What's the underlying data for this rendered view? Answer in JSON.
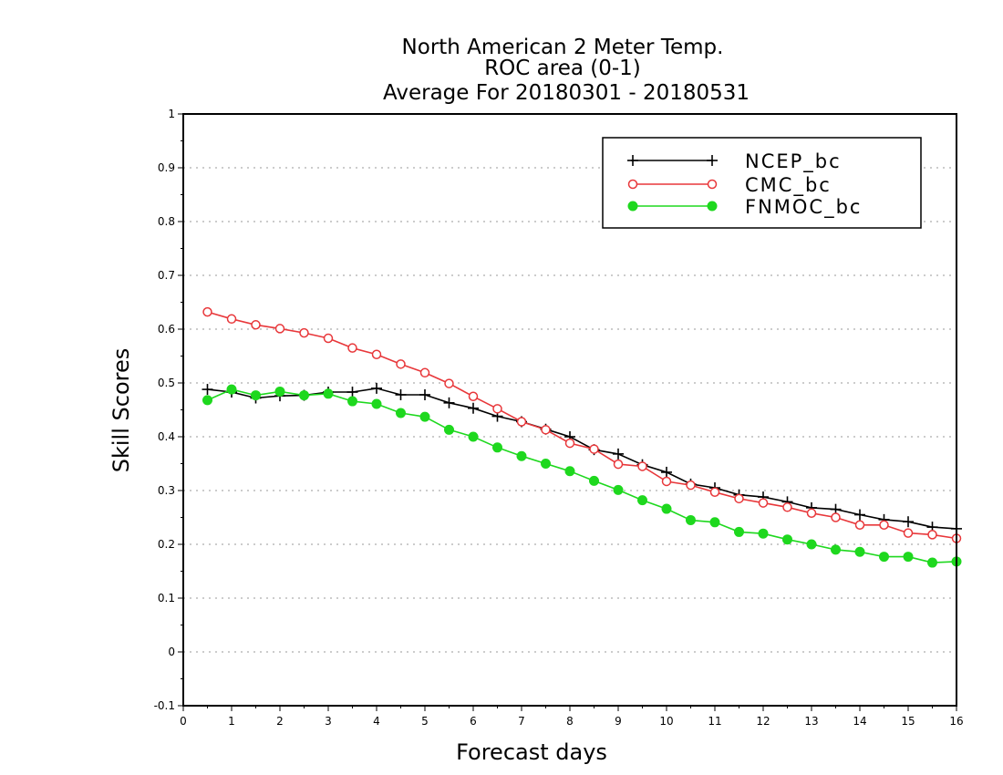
{
  "chart_data": {
    "type": "line",
    "title_lines": [
      "North American 2 Meter Temp.",
      "ROC area (0-1)",
      "Average For 20180301 - 20180531"
    ],
    "xlabel": "Forecast days",
    "ylabel": "Skill Scores",
    "xlim": [
      0,
      16
    ],
    "ylim": [
      -0.1,
      1
    ],
    "x_ticks": [
      0,
      1,
      2,
      3,
      4,
      5,
      6,
      7,
      8,
      9,
      10,
      11,
      12,
      13,
      14,
      15,
      16
    ],
    "y_ticks": [
      -0.1,
      0,
      0.1,
      0.2,
      0.3,
      0.4,
      0.5,
      0.6,
      0.7,
      0.8,
      0.9,
      1
    ],
    "y_tick_labels": [
      "-0.1",
      "0",
      "0.1",
      "0.2",
      "0.3",
      "0.4",
      "0.5",
      "0.6",
      "0.7",
      "0.8",
      "0.9",
      "1"
    ],
    "grid": "horizontal dotted",
    "legend_position": "top-right",
    "x": [
      0.5,
      1,
      1.5,
      2,
      2.5,
      3,
      3.5,
      4,
      4.5,
      5,
      5.5,
      6,
      6.5,
      7,
      7.5,
      8,
      8.5,
      9,
      9.5,
      10,
      10.5,
      11,
      11.5,
      12,
      12.5,
      13,
      13.5,
      14,
      14.5,
      15,
      15.5,
      16
    ],
    "series": [
      {
        "name": "NCEP_bc",
        "color": "#000000",
        "marker": "plus",
        "values": [
          0.488,
          0.483,
          0.472,
          0.476,
          0.477,
          0.483,
          0.483,
          0.49,
          0.478,
          0.478,
          0.463,
          0.453,
          0.438,
          0.428,
          0.414,
          0.4,
          0.376,
          0.368,
          0.348,
          0.334,
          0.312,
          0.305,
          0.292,
          0.288,
          0.279,
          0.268,
          0.265,
          0.255,
          0.246,
          0.242,
          0.232,
          0.229
        ]
      },
      {
        "name": "CMC_bc",
        "color": "#e8373a",
        "marker": "open-circle",
        "values": [
          0.632,
          0.619,
          0.608,
          0.601,
          0.593,
          0.583,
          0.565,
          0.553,
          0.535,
          0.519,
          0.499,
          0.475,
          0.452,
          0.428,
          0.413,
          0.388,
          0.377,
          0.349,
          0.345,
          0.317,
          0.31,
          0.297,
          0.285,
          0.277,
          0.269,
          0.258,
          0.25,
          0.236,
          0.236,
          0.221,
          0.218,
          0.211
        ]
      },
      {
        "name": "FNMOC_bc",
        "color": "#1ed81e",
        "marker": "filled-circle",
        "values": [
          0.468,
          0.488,
          0.477,
          0.484,
          0.477,
          0.48,
          0.466,
          0.461,
          0.444,
          0.437,
          0.413,
          0.4,
          0.38,
          0.364,
          0.35,
          0.336,
          0.318,
          0.301,
          0.282,
          0.266,
          0.245,
          0.241,
          0.223,
          0.22,
          0.209,
          0.2,
          0.19,
          0.186,
          0.177,
          0.177,
          0.166,
          0.168
        ]
      }
    ]
  }
}
